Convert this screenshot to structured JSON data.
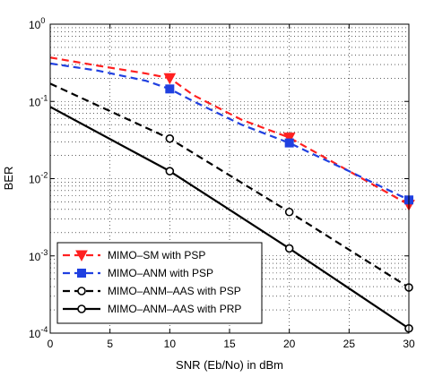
{
  "chart_data": {
    "type": "line",
    "xlabel": "SNR (Eb/No) in dBm",
    "ylabel": "BER",
    "xlim": [
      0,
      30
    ],
    "ylim": [
      0.0001,
      1
    ],
    "yscale": "log",
    "grid": true,
    "legend_position": "bottom-left",
    "x_ticks": [
      0,
      5,
      10,
      15,
      20,
      25,
      30
    ],
    "y_ticks": [
      {
        "value": 0.0001,
        "base": "10",
        "exp": "-4"
      },
      {
        "value": 0.001,
        "base": "10",
        "exp": "-3"
      },
      {
        "value": 0.01,
        "base": "10",
        "exp": "-2"
      },
      {
        "value": 0.1,
        "base": "10",
        "exp": "-1"
      },
      {
        "value": 1,
        "base": "10",
        "exp": "0"
      }
    ],
    "series": [
      {
        "name": "MIMO–SM with PSP",
        "color": "#ff2020",
        "dash": "dashed",
        "marker": "triangle-down",
        "line": [
          [
            0,
            0.37
          ],
          [
            4,
            0.29
          ],
          [
            8,
            0.23
          ],
          [
            10,
            0.2
          ],
          [
            12,
            0.12
          ],
          [
            16,
            0.058
          ],
          [
            20,
            0.034
          ],
          [
            25,
            0.0125
          ],
          [
            30,
            0.0046
          ]
        ],
        "markers": [
          [
            10,
            0.2
          ],
          [
            20,
            0.034
          ],
          [
            30,
            0.0046
          ]
        ]
      },
      {
        "name": "MIMO–ANM with PSP",
        "color": "#2040e0",
        "dash": "dashed",
        "marker": "square",
        "line": [
          [
            0,
            0.31
          ],
          [
            4,
            0.25
          ],
          [
            8,
            0.185
          ],
          [
            10,
            0.145
          ],
          [
            12,
            0.1
          ],
          [
            16,
            0.05
          ],
          [
            20,
            0.029
          ],
          [
            25,
            0.0125
          ],
          [
            30,
            0.0053
          ]
        ],
        "markers": [
          [
            10,
            0.145
          ],
          [
            20,
            0.029
          ],
          [
            30,
            0.0053
          ]
        ]
      },
      {
        "name": "MIMO–ANM–AAS with PSP",
        "color": "#000000",
        "dash": "dashed",
        "marker": "circle",
        "line": [
          [
            0,
            0.17
          ],
          [
            10,
            0.033
          ],
          [
            20,
            0.0037
          ],
          [
            30,
            0.00039
          ]
        ],
        "markers": [
          [
            10,
            0.033
          ],
          [
            20,
            0.0037
          ],
          [
            30,
            0.00039
          ]
        ]
      },
      {
        "name": "MIMO–ANM–AAS with PRP",
        "color": "#000000",
        "dash": "solid",
        "marker": "circle",
        "line": [
          [
            0,
            0.085
          ],
          [
            10,
            0.0125
          ],
          [
            20,
            0.00125
          ],
          [
            30,
            0.000115
          ]
        ],
        "markers": [
          [
            10,
            0.0125
          ],
          [
            20,
            0.00125
          ],
          [
            30,
            0.000115
          ]
        ]
      }
    ]
  }
}
